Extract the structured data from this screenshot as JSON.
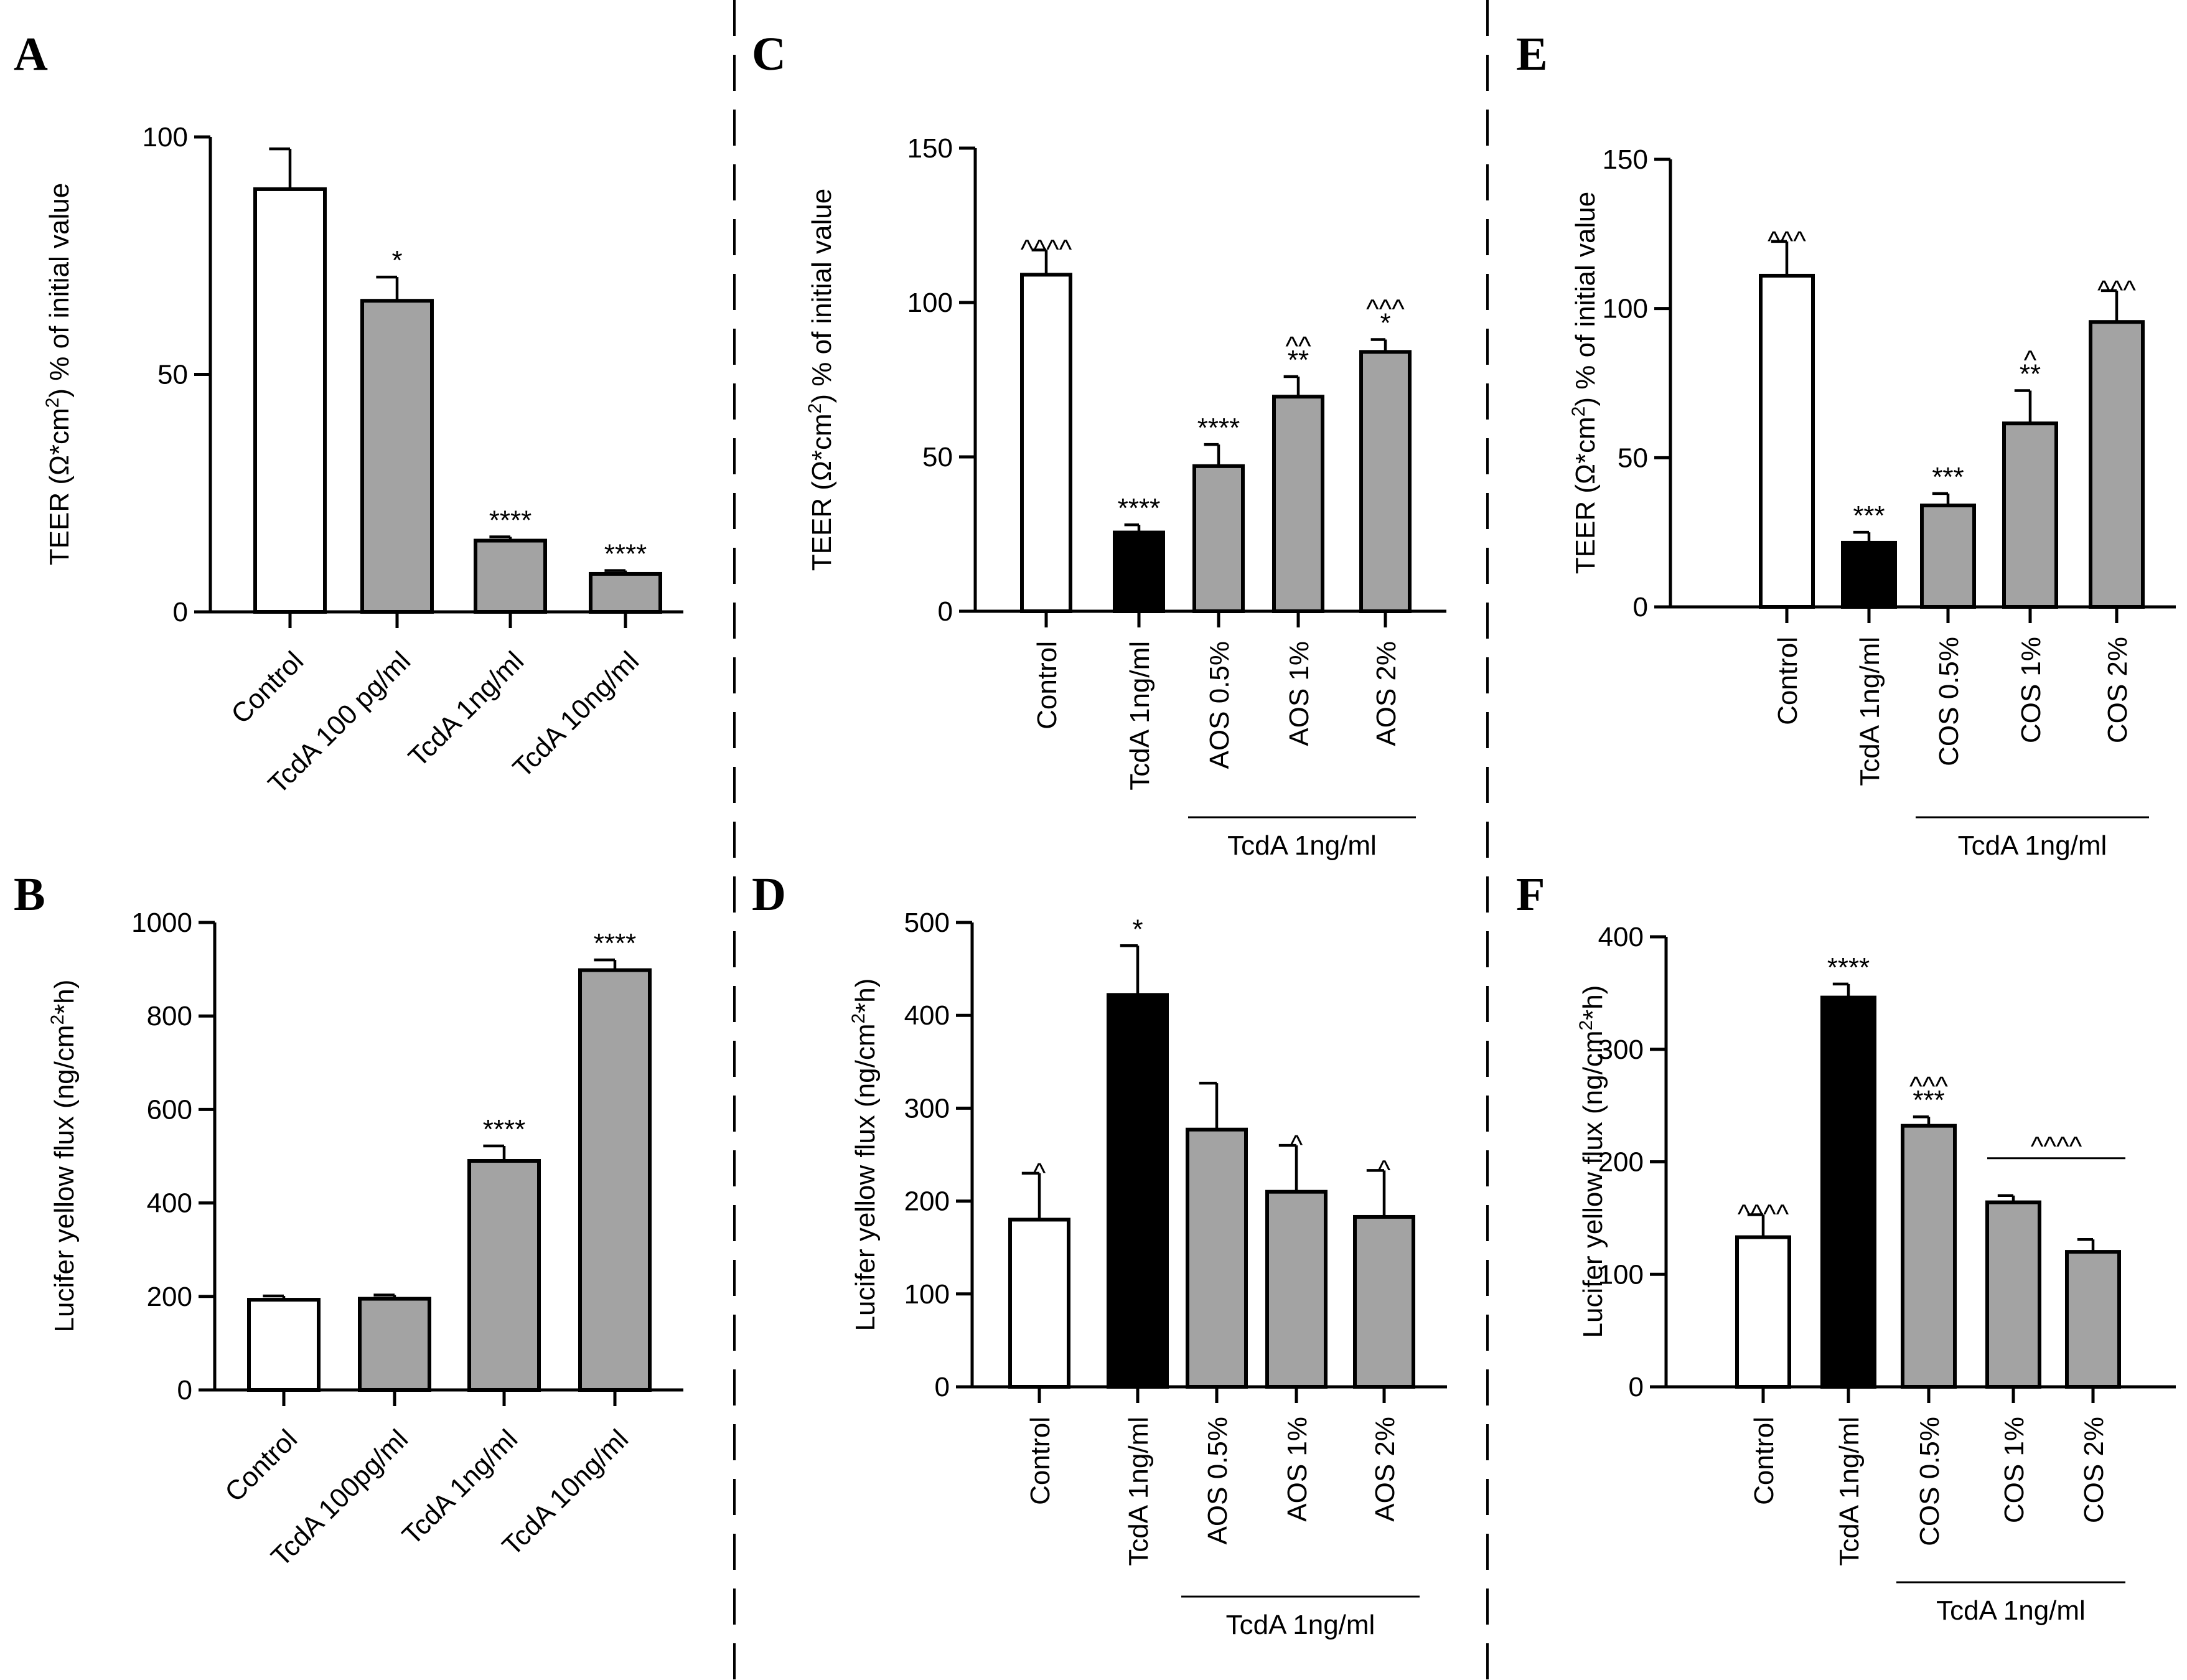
{
  "colors": {
    "white": "#ffffff",
    "gray": "#a3a3a3",
    "black": "#000000"
  },
  "divider_style": "dashed",
  "chart_data": [
    {
      "panel": "A",
      "type": "bar",
      "ylabel_parts": [
        "TEER (Ω*cm",
        "2",
        ") % of initial value"
      ],
      "ylim": [
        0,
        100
      ],
      "yticks": [
        0,
        50,
        100
      ],
      "categories": [
        "Control",
        "TcdA 100 pg/ml",
        "TcdA 1ng/ml",
        "TcdA 10ng/ml"
      ],
      "label_rotation": -45,
      "values": [
        89,
        65.5,
        15,
        8
      ],
      "errors": [
        8.5,
        5,
        0.8,
        0.7
      ],
      "fills": [
        "white",
        "gray",
        "gray",
        "gray"
      ],
      "annotations": [
        [],
        [
          "*"
        ],
        [
          "****"
        ],
        [
          "****"
        ]
      ],
      "group": null
    },
    {
      "panel": "B",
      "type": "bar",
      "ylabel_parts": [
        "Lucifer yellow flux (ng/cm",
        "2",
        "*h)"
      ],
      "ylim": [
        0,
        1000
      ],
      "yticks": [
        0,
        200,
        400,
        600,
        800,
        1000
      ],
      "categories": [
        "Control",
        "TcdA 100pg/ml",
        "TcdA 1ng/ml",
        "TcdA 10ng/ml"
      ],
      "label_rotation": -45,
      "values": [
        193,
        195,
        490,
        898
      ],
      "errors": [
        8,
        8,
        32,
        22
      ],
      "fills": [
        "white",
        "gray",
        "gray",
        "gray"
      ],
      "annotations": [
        [],
        [],
        [
          "****"
        ],
        [
          "****"
        ]
      ],
      "group": null
    },
    {
      "panel": "C",
      "type": "bar",
      "ylabel_parts": [
        "TEER (Ω*cm",
        "2",
        ") % of initial value"
      ],
      "ylim": [
        0,
        150
      ],
      "yticks": [
        0,
        50,
        100,
        150
      ],
      "categories": [
        "Control",
        "TcdA 1ng/ml",
        "AOS 0.5%",
        "AOS 1%",
        "AOS 2%"
      ],
      "label_rotation": -90,
      "values": [
        109,
        25.5,
        47,
        69.5,
        84
      ],
      "errors": [
        8,
        2.5,
        7,
        6.5,
        4
      ],
      "fills": [
        "white",
        "black",
        "gray",
        "gray",
        "gray"
      ],
      "annotations": [
        [
          "^^^^"
        ],
        [
          "****"
        ],
        [
          "****"
        ],
        [
          "**",
          "^^"
        ],
        [
          "*",
          "^^^"
        ]
      ],
      "group": {
        "label": "TcdA 1ng/ml",
        "from": 2,
        "to": 4
      }
    },
    {
      "panel": "D",
      "type": "bar",
      "ylabel_parts": [
        "Lucifer yellow flux (ng/cm",
        "2",
        "*h)"
      ],
      "ylim": [
        0,
        500
      ],
      "yticks": [
        0,
        100,
        200,
        300,
        400,
        500
      ],
      "categories": [
        "Control",
        "TcdA 1ng/ml",
        "AOS 0.5%",
        "AOS 1%",
        "AOS 2%"
      ],
      "label_rotation": -90,
      "values": [
        180,
        422,
        277,
        210,
        183
      ],
      "errors": [
        50,
        53,
        50,
        50,
        50
      ],
      "fills": [
        "white",
        "black",
        "gray",
        "gray",
        "gray"
      ],
      "annotations": [
        [
          "^"
        ],
        [
          "*"
        ],
        [],
        [
          "^"
        ],
        [
          "^"
        ]
      ],
      "group": {
        "label": "TcdA 1ng/ml",
        "from": 2,
        "to": 4
      }
    },
    {
      "panel": "E",
      "type": "bar",
      "ylabel_parts": [
        "TEER (Ω*cm",
        "2",
        ") % of initial value"
      ],
      "ylim": [
        0,
        150
      ],
      "yticks": [
        0,
        50,
        100,
        150
      ],
      "categories": [
        "Control",
        "TcdA 1ng/ml",
        "COS 0.5%",
        "COS 1%",
        "COS 2%"
      ],
      "label_rotation": -90,
      "values": [
        111,
        21.5,
        34,
        61.5,
        95.5
      ],
      "errors": [
        11.5,
        3.5,
        4,
        11,
        10.5
      ],
      "fills": [
        "white",
        "black",
        "gray",
        "gray",
        "gray"
      ],
      "annotations": [
        [
          "^^^"
        ],
        [
          "***"
        ],
        [
          "***"
        ],
        [
          "**",
          "^"
        ],
        [
          "^^^"
        ]
      ],
      "group": {
        "label": "TcdA 1ng/ml",
        "from": 2,
        "to": 4
      }
    },
    {
      "panel": "F",
      "type": "bar",
      "ylabel_parts": [
        "Lucifer yellow flux (ng/cm",
        "2",
        "*h)"
      ],
      "ylim": [
        0,
        400
      ],
      "yticks": [
        0,
        100,
        200,
        300,
        400
      ],
      "categories": [
        "Control",
        "TcdA 1ng/ml",
        "COS 0.5%",
        "COS 1%",
        "COS 2%"
      ],
      "label_rotation": -90,
      "values": [
        133,
        346,
        232,
        164,
        120
      ],
      "errors": [
        20,
        12,
        8,
        6,
        11
      ],
      "fills": [
        "white",
        "black",
        "gray",
        "gray",
        "gray"
      ],
      "annotations": [
        [
          "^^^^"
        ],
        [
          "****"
        ],
        [
          "***",
          "^^^"
        ],
        [],
        []
      ],
      "bracket": {
        "label": "^^^^",
        "from": 3,
        "to": 4
      },
      "group": {
        "label": "TcdA 1ng/ml",
        "from": 2,
        "to": 4
      }
    }
  ]
}
